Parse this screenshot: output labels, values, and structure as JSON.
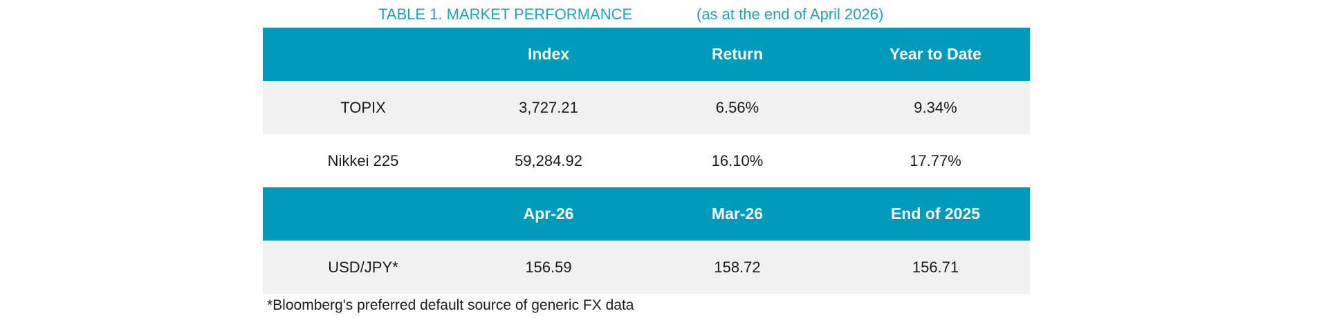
{
  "title": {
    "main": "TABLE 1. MARKET PERFORMANCE",
    "sub": "(as at the end of April 2026)"
  },
  "table1": {
    "headers": [
      "",
      "Index",
      "Return",
      "Year to Date"
    ],
    "rows": [
      [
        "TOPIX",
        "3,727.21",
        "6.56%",
        "9.34%"
      ],
      [
        "Nikkei 225",
        "59,284.92",
        "16.10%",
        "17.77%"
      ]
    ]
  },
  "table2": {
    "headers": [
      "",
      "Apr-26",
      "Mar-26",
      "End of 2025"
    ],
    "rows": [
      [
        "USD/JPY*",
        "156.59",
        "158.72",
        "156.71"
      ]
    ]
  },
  "footnote": "*Bloomberg's preferred default source of generic FX data",
  "colors": {
    "header_bg": "#029aba",
    "title_text": "#1ba3b8",
    "shaded_row": "#f1f1f1"
  }
}
